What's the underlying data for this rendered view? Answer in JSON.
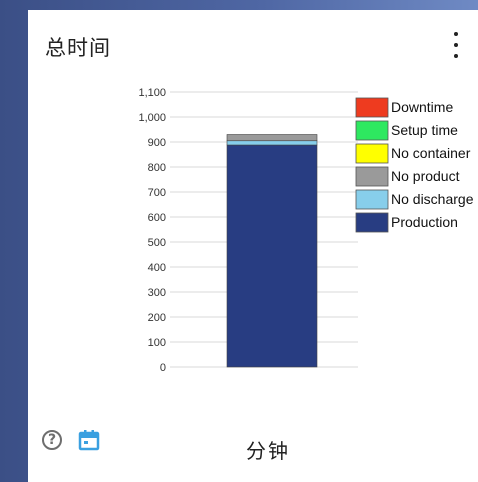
{
  "card": {
    "title": "总时间",
    "unit_label": "分钟",
    "help_glyph": "?"
  },
  "icons": {
    "menu": "more-vert-icon",
    "help": "help-circle-icon",
    "calendar": "calendar-icon"
  },
  "colors": {
    "calendar": "#3aa0e0",
    "help": "#6e6e6e"
  },
  "chart_data": {
    "type": "bar",
    "stacked": true,
    "categories": [
      ""
    ],
    "ylim": [
      0,
      1100
    ],
    "yticks": [
      "0",
      "100",
      "200",
      "300",
      "400",
      "500",
      "600",
      "700",
      "800",
      "900",
      "1,000",
      "1,100"
    ],
    "grid": true,
    "legend_position": "top-right",
    "series": [
      {
        "name": "Production",
        "color": "#283d82",
        "values": [
          888
        ]
      },
      {
        "name": "No discharge",
        "color": "#87ceeb",
        "values": [
          17
        ]
      },
      {
        "name": "No product",
        "color": "#9a9a9a",
        "values": [
          25
        ]
      },
      {
        "name": "No container",
        "color": "#ffff00",
        "values": [
          0
        ]
      },
      {
        "name": "Setup time",
        "color": "#2ee860",
        "values": [
          0
        ]
      },
      {
        "name": "Downtime",
        "color": "#ee3b1f",
        "values": [
          0
        ]
      }
    ]
  }
}
